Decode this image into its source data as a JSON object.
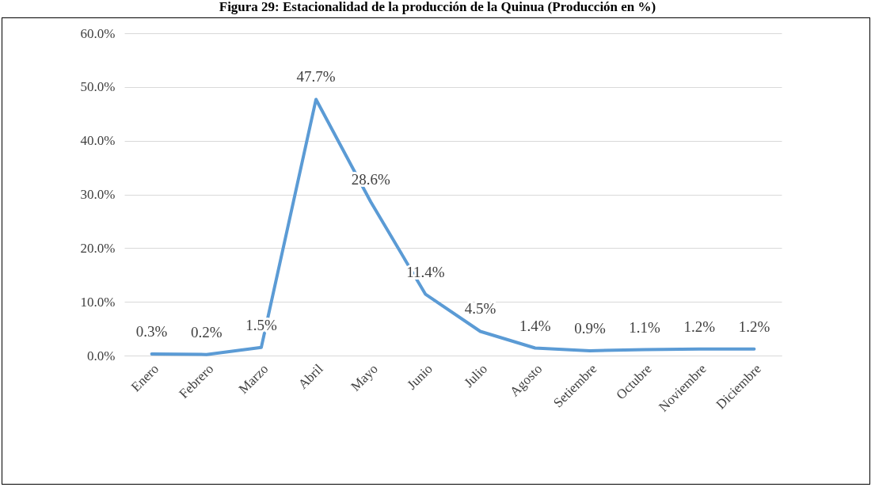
{
  "chart_data": {
    "type": "line",
    "title": "Figura 29: Estacionalidad de la producción de la Quinua (Producción en %)",
    "categories": [
      "Enero",
      "Febrero",
      "Marzo",
      "Abril",
      "Mayo",
      "Junio",
      "Julio",
      "Agosto",
      "Setiembre",
      "Octubre",
      "Noviembre",
      "Diciembre"
    ],
    "series": [
      {
        "color": "#5b9bd5",
        "values": [
          0.3,
          0.2,
          1.5,
          47.7,
          28.6,
          11.4,
          4.5,
          1.4,
          0.9,
          1.1,
          1.2,
          1.2
        ],
        "value_labels": [
          "0.3%",
          "0.2%",
          "1.5%",
          "47.7%",
          "28.6%",
          "11.4%",
          "4.5%",
          "1.4%",
          "0.9%",
          "1.1%",
          "1.2%",
          "1.2%"
        ]
      }
    ],
    "ylim": [
      0,
      60
    ],
    "yticks": [
      {
        "value": 0,
        "label": "0.0%"
      },
      {
        "value": 10,
        "label": "10.0%"
      },
      {
        "value": 20,
        "label": "20.0%"
      },
      {
        "value": 30,
        "label": "30.0%"
      },
      {
        "value": 40,
        "label": "40.0%"
      },
      {
        "value": 50,
        "label": "50.0%"
      },
      {
        "value": 60,
        "label": "60.0%"
      }
    ],
    "grid": "y",
    "marker": "none",
    "line_style": "solid"
  }
}
